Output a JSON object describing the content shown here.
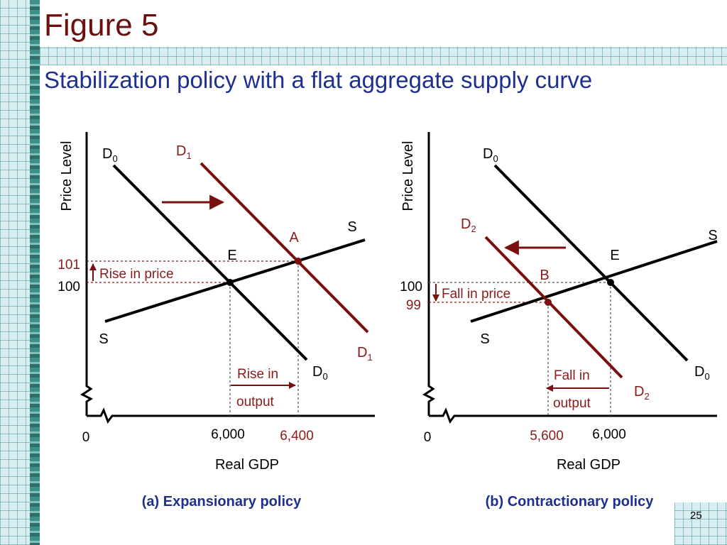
{
  "title": "Figure 5",
  "subtitle": "Stabilization policy with a flat aggregate supply curve",
  "page_number": "25",
  "colors": {
    "dark_red": "#7a0f0f",
    "label_red": "#8b1a1a",
    "title_blue": "#1f2f8f",
    "black": "#000000"
  },
  "panels": {
    "a": {
      "caption": "(a) Expansionary policy",
      "ylabel": "Price Level",
      "xlabel": "Real GDP",
      "origin": "0",
      "curves": {
        "s_top": "S",
        "s_bottom": "S",
        "d0_top_main": "D",
        "d0_top_sub": "0",
        "d0_bottom_main": "D",
        "d0_bottom_sub": "0",
        "d1_top_main": "D",
        "d1_top_sub": "1",
        "d1_bottom_main": "D",
        "d1_bottom_sub": "1"
      },
      "points": {
        "e": "E",
        "a": "A"
      },
      "y_values": {
        "p1": "101",
        "p0": "100"
      },
      "x_values": {
        "q0": "6,000",
        "q1": "6,400"
      },
      "annotations": {
        "price_change": "Rise in price",
        "output_line1": "Rise in",
        "output_line2": "output"
      }
    },
    "b": {
      "caption": "(b) Contractionary policy",
      "ylabel": "Price Level",
      "xlabel": "Real GDP",
      "origin": "0",
      "curves": {
        "s_top": "S",
        "s_bottom": "S",
        "d0_top_main": "D",
        "d0_top_sub": "0",
        "d0_bottom_main": "D",
        "d0_bottom_sub": "0",
        "d2_top_main": "D",
        "d2_top_sub": "2",
        "d2_bottom_main": "D",
        "d2_bottom_sub": "2"
      },
      "points": {
        "e": "E",
        "b": "B"
      },
      "y_values": {
        "p0": "100",
        "p2": "99"
      },
      "x_values": {
        "q2": "5,600",
        "q0": "6,000"
      },
      "annotations": {
        "price_change": "Fall in price",
        "output_line1": "Fall in",
        "output_line2": "output"
      }
    }
  }
}
